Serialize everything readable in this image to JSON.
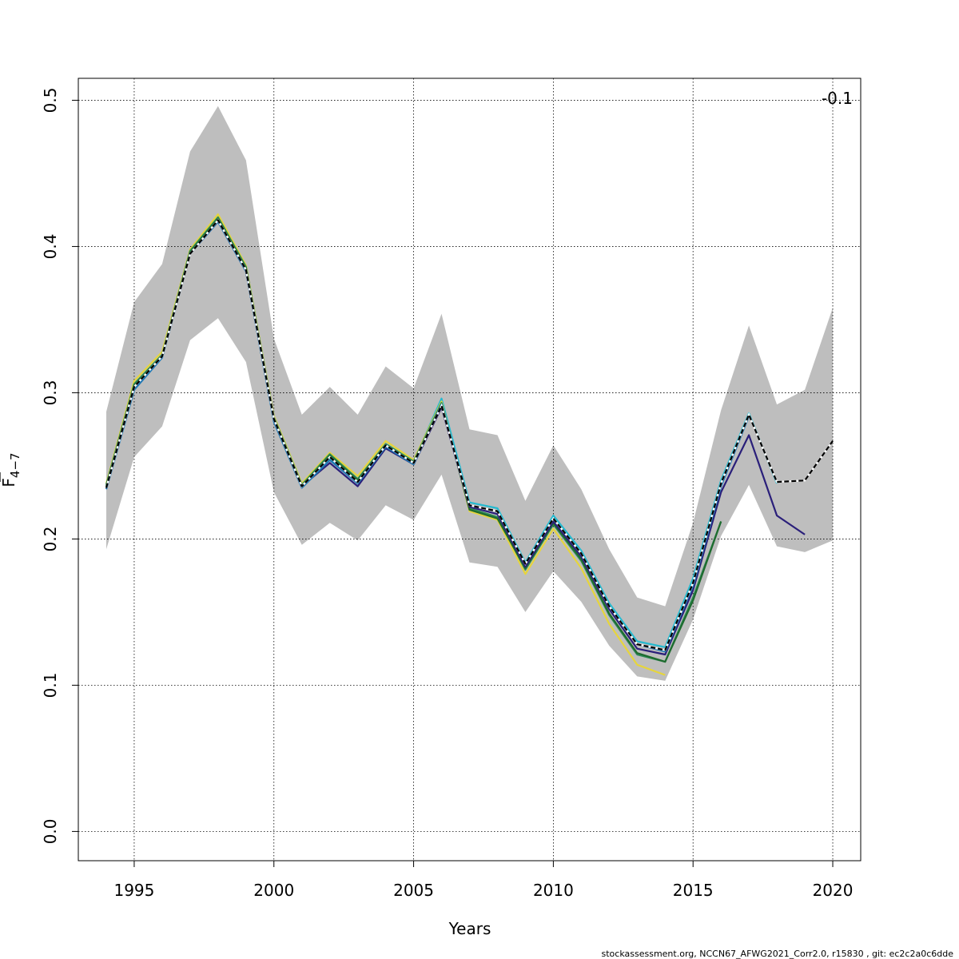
{
  "chart_data": {
    "type": "line",
    "xlabel": "Years",
    "ylabel": "F",
    "ylabel_subscript": "4−7",
    "annotation": "-0.1",
    "footer": "stockassessment.org, NCCN67_AFWG2021_Corr2.0, r15830 , git: ec2c2a0c6dde",
    "xlim": [
      1993,
      2021
    ],
    "ylim": [
      -0.02,
      0.515
    ],
    "xticks": [
      1995,
      2000,
      2005,
      2010,
      2015,
      2020
    ],
    "yticks": [
      0.0,
      0.1,
      0.2,
      0.3,
      0.4,
      0.5
    ],
    "ytick_labels": [
      "0.0",
      "0.1",
      "0.2",
      "0.3",
      "0.4",
      "0.5"
    ],
    "grid": true,
    "band": {
      "color": "#bebebe",
      "x": [
        1994,
        1995,
        1996,
        1997,
        1998,
        1999,
        2000,
        2001,
        2002,
        2003,
        2004,
        2005,
        2006,
        2007,
        2008,
        2009,
        2010,
        2011,
        2012,
        2013,
        2014,
        2015,
        2016,
        2017,
        2018,
        2019,
        2020
      ],
      "lower": [
        0.193,
        0.256,
        0.277,
        0.336,
        0.351,
        0.321,
        0.232,
        0.196,
        0.211,
        0.199,
        0.223,
        0.213,
        0.244,
        0.184,
        0.181,
        0.15,
        0.178,
        0.157,
        0.127,
        0.106,
        0.103,
        0.145,
        0.202,
        0.237,
        0.195,
        0.191,
        0.199
      ],
      "upper": [
        0.287,
        0.362,
        0.388,
        0.465,
        0.496,
        0.459,
        0.337,
        0.285,
        0.304,
        0.285,
        0.318,
        0.303,
        0.354,
        0.275,
        0.271,
        0.226,
        0.264,
        0.234,
        0.193,
        0.16,
        0.154,
        0.211,
        0.288,
        0.346,
        0.292,
        0.302,
        0.358
      ]
    },
    "series": [
      {
        "color": "#24b9cf",
        "x": [
          1994,
          1995,
          1996,
          1997,
          1998,
          1999,
          2000,
          2001,
          2002,
          2003,
          2004,
          2005,
          2006,
          2007,
          2008,
          2009,
          2010,
          2011,
          2012,
          2013,
          2014,
          2015,
          2016,
          2017,
          2018
        ],
        "values": [
          0.236,
          0.304,
          0.326,
          0.396,
          0.419,
          0.385,
          0.282,
          0.236,
          0.255,
          0.238,
          0.265,
          0.253,
          0.296,
          0.225,
          0.221,
          0.184,
          0.216,
          0.192,
          0.156,
          0.13,
          0.126,
          0.173,
          0.24,
          0.286,
          0.238
        ]
      },
      {
        "color": "#e6d53c",
        "x": [
          1994,
          1995,
          1996,
          1997,
          1998,
          1999,
          2000,
          2001,
          2002,
          2003,
          2004,
          2005,
          2006,
          2007,
          2008,
          2009,
          2010,
          2011,
          2012,
          2013,
          2014
        ],
        "values": [
          0.238,
          0.308,
          0.328,
          0.398,
          0.422,
          0.387,
          0.284,
          0.238,
          0.259,
          0.243,
          0.267,
          0.254,
          0.294,
          0.219,
          0.213,
          0.176,
          0.207,
          0.18,
          0.142,
          0.114,
          0.107
        ]
      },
      {
        "color": "#2e8b57",
        "x": [
          1994,
          1995,
          1996,
          1997,
          1998,
          1999,
          2000,
          2001,
          2002,
          2003,
          2004,
          2005,
          2006,
          2007,
          2008,
          2009,
          2010,
          2011,
          2012,
          2013,
          2014,
          2015,
          2016
        ],
        "values": [
          0.237,
          0.306,
          0.326,
          0.397,
          0.42,
          0.386,
          0.283,
          0.237,
          0.258,
          0.241,
          0.265,
          0.253,
          0.293,
          0.221,
          0.215,
          0.179,
          0.21,
          0.185,
          0.148,
          0.121,
          0.116,
          0.16,
          0.212
        ]
      },
      {
        "color": "#1e6b2e",
        "x": [
          1994,
          1995,
          1996,
          1997,
          1998,
          1999,
          2000,
          2001,
          2002,
          2003,
          2004,
          2005,
          2006,
          2007,
          2008,
          2009,
          2010,
          2011,
          2012,
          2013,
          2014,
          2015,
          2016
        ],
        "values": [
          0.236,
          0.305,
          0.325,
          0.396,
          0.419,
          0.385,
          0.282,
          0.236,
          0.257,
          0.24,
          0.264,
          0.252,
          0.292,
          0.22,
          0.214,
          0.18,
          0.211,
          0.186,
          0.149,
          0.122,
          0.116,
          0.158,
          0.212
        ]
      },
      {
        "color": "#2a1f7a",
        "x": [
          1994,
          1995,
          1996,
          1997,
          1998,
          1999,
          2000,
          2001,
          2002,
          2003,
          2004,
          2005,
          2006,
          2007,
          2008,
          2009,
          2010,
          2011,
          2012,
          2013,
          2014,
          2015,
          2016,
          2017,
          2018,
          2019
        ],
        "values": [
          0.235,
          0.304,
          0.325,
          0.395,
          0.417,
          0.383,
          0.281,
          0.236,
          0.252,
          0.236,
          0.262,
          0.251,
          0.29,
          0.222,
          0.217,
          0.181,
          0.212,
          0.188,
          0.152,
          0.125,
          0.121,
          0.165,
          0.232,
          0.271,
          0.216,
          0.203
        ]
      },
      {
        "color": "#1f77b4",
        "x": [
          1994,
          1995,
          1996,
          1997,
          1998,
          1999,
          2000,
          2001,
          2002,
          2003,
          2004,
          2005,
          2006,
          2007,
          2008,
          2009,
          2010,
          2011,
          2012,
          2013,
          2014,
          2015,
          2016,
          2017
        ],
        "values": [
          0.234,
          0.302,
          0.324,
          0.395,
          0.417,
          0.383,
          0.28,
          0.235,
          0.254,
          0.238,
          0.263,
          0.251,
          0.292,
          0.223,
          0.219,
          0.183,
          0.214,
          0.19,
          0.154,
          0.128,
          0.123,
          0.168,
          0.236,
          0.284
        ]
      },
      {
        "color": "#000000",
        "dashed": true,
        "x": [
          1994,
          1995,
          1996,
          1997,
          1998,
          1999,
          2000,
          2001,
          2002,
          2003,
          2004,
          2005,
          2006,
          2007,
          2008,
          2009,
          2010,
          2011,
          2012,
          2013,
          2014,
          2015,
          2016,
          2017,
          2018,
          2019,
          2020
        ],
        "values": [
          0.235,
          0.304,
          0.325,
          0.395,
          0.418,
          0.384,
          0.282,
          0.236,
          0.256,
          0.239,
          0.264,
          0.252,
          0.291,
          0.223,
          0.219,
          0.183,
          0.214,
          0.19,
          0.154,
          0.128,
          0.124,
          0.17,
          0.238,
          0.285,
          0.239,
          0.24,
          0.267
        ]
      }
    ]
  }
}
